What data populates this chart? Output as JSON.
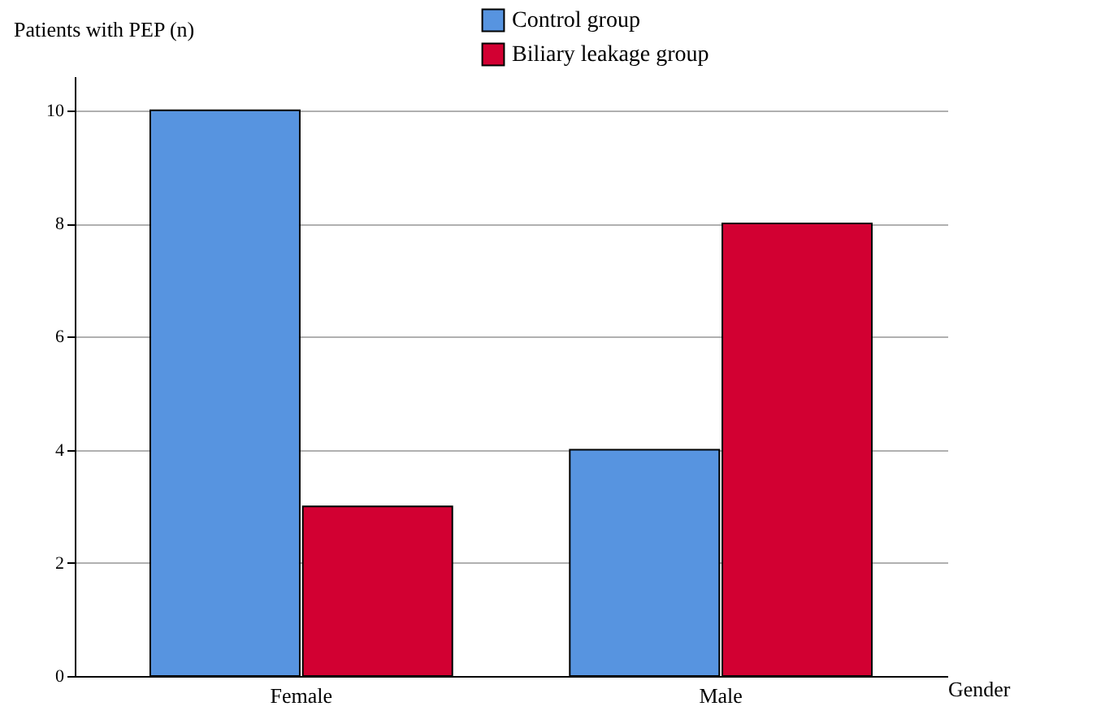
{
  "chart_data": {
    "type": "bar",
    "xlabel": "Gender",
    "ylabel": "Patients with PEP (n)",
    "categories": [
      "Female",
      "Male"
    ],
    "series": [
      {
        "name": "Control group",
        "color": "#5794e0",
        "values": [
          10,
          4
        ]
      },
      {
        "name": "Biliary leakage group",
        "color": "#d20032",
        "values": [
          3,
          8
        ]
      }
    ],
    "ylim": [
      0,
      10.6
    ],
    "yticks": [
      0,
      2,
      4,
      6,
      8,
      10
    ],
    "grid": "y",
    "legend": "top"
  }
}
